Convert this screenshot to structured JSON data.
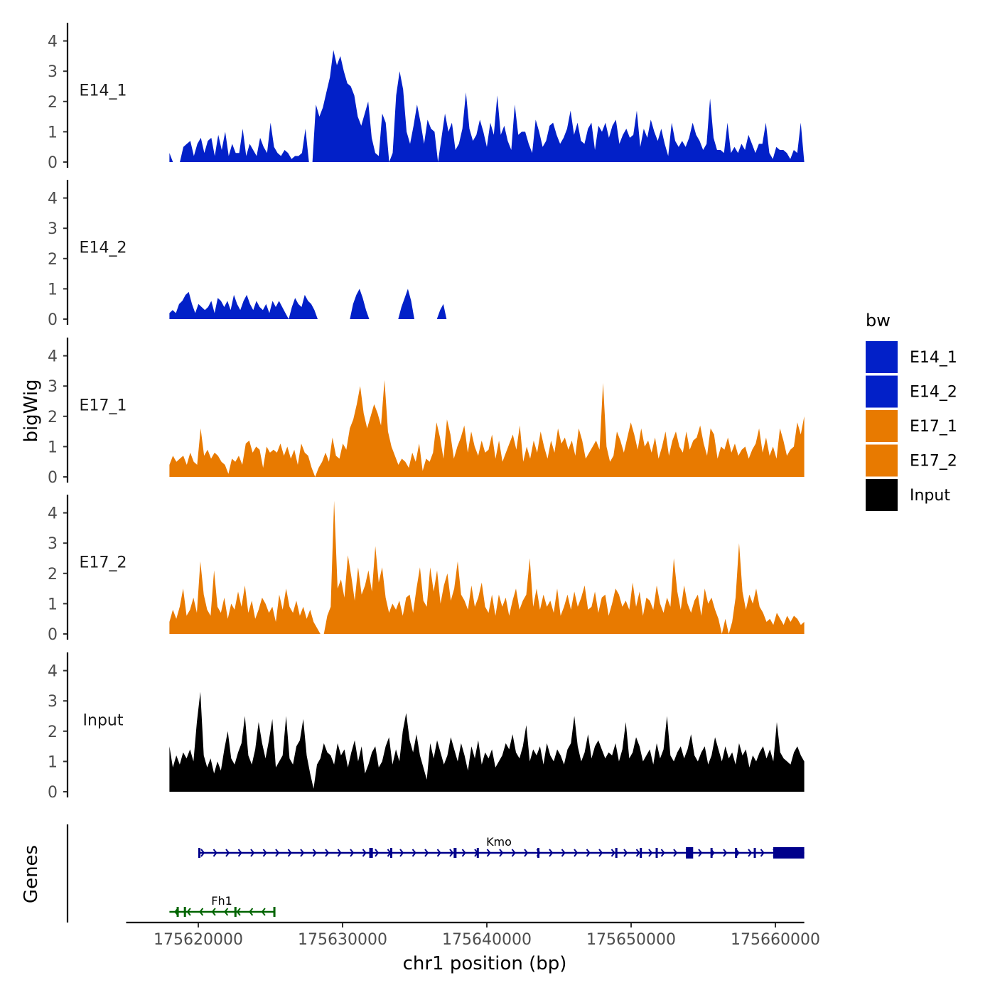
{
  "chart_data": {
    "type": "area",
    "title": "",
    "ylabel": "bigWig",
    "genes_label": "Genes",
    "xlabel": "chr1 position (bp)",
    "xlim": [
      175615000,
      175662000
    ],
    "data_xrange": [
      175618000,
      175662000
    ],
    "x_ticks": [
      175620000,
      175630000,
      175640000,
      175650000,
      175660000
    ],
    "x_tick_labels": [
      "175620000",
      "175630000",
      "175640000",
      "175650000",
      "175660000"
    ],
    "y_ticks": [
      0,
      1,
      2,
      3,
      4
    ],
    "y_tick_labels": [
      "0",
      "1",
      "2",
      "3",
      "4"
    ],
    "ylim": [
      0,
      4.5
    ],
    "series": [
      {
        "name": "E14_1",
        "color": "#0220c8",
        "values": [
          0.3,
          0.0,
          0.0,
          0.0,
          0.5,
          0.6,
          0.7,
          0.2,
          0.6,
          0.8,
          0.3,
          0.7,
          0.8,
          0.2,
          0.9,
          0.4,
          1.0,
          0.2,
          0.6,
          0.3,
          0.3,
          1.1,
          0.2,
          0.6,
          0.4,
          0.2,
          0.8,
          0.5,
          0.3,
          1.3,
          0.5,
          0.3,
          0.2,
          0.4,
          0.3,
          0.1,
          0.2,
          0.2,
          0.3,
          1.1,
          0.0,
          0.0,
          1.9,
          1.5,
          1.8,
          2.3,
          2.8,
          3.7,
          3.2,
          3.5,
          3.0,
          2.6,
          2.5,
          2.2,
          1.5,
          1.2,
          1.6,
          2.0,
          0.8,
          0.3,
          0.2,
          1.6,
          1.3,
          0.0,
          0.3,
          2.2,
          3.0,
          2.4,
          1.0,
          0.6,
          1.2,
          1.9,
          1.3,
          0.6,
          1.4,
          1.1,
          1.0,
          0.0,
          0.8,
          1.6,
          1.0,
          1.3,
          0.4,
          0.6,
          1.1,
          2.3,
          1.1,
          0.7,
          0.9,
          1.4,
          1.0,
          0.5,
          1.3,
          0.9,
          2.2,
          0.9,
          1.2,
          0.7,
          0.4,
          1.9,
          0.9,
          1.0,
          1.0,
          0.6,
          0.3,
          1.4,
          1.0,
          0.5,
          0.7,
          1.2,
          1.3,
          0.9,
          0.6,
          0.8,
          1.1,
          1.7,
          0.9,
          1.3,
          0.7,
          0.6,
          1.1,
          1.3,
          0.4,
          1.2,
          1.0,
          1.3,
          0.8,
          1.2,
          1.4,
          0.6,
          0.9,
          1.1,
          0.8,
          0.9,
          1.7,
          0.5,
          1.1,
          0.8,
          1.4,
          1.0,
          0.7,
          1.1,
          0.6,
          0.2,
          1.3,
          0.7,
          0.5,
          0.7,
          0.5,
          0.8,
          1.3,
          0.9,
          0.7,
          0.4,
          0.6,
          2.1,
          0.8,
          0.4,
          0.4,
          0.3,
          1.3,
          0.3,
          0.5,
          0.3,
          0.6,
          0.4,
          0.9,
          0.6,
          0.3,
          0.6,
          0.6,
          1.3,
          0.3,
          0.1,
          0.5,
          0.4,
          0.4,
          0.3,
          0.1,
          0.4,
          0.3,
          1.3,
          0.0
        ]
      },
      {
        "name": "E14_2",
        "color": "#0220c8",
        "values": [
          0.2,
          0.3,
          0.2,
          0.5,
          0.6,
          0.8,
          0.9,
          0.5,
          0.2,
          0.5,
          0.4,
          0.3,
          0.4,
          0.6,
          0.2,
          0.7,
          0.6,
          0.4,
          0.6,
          0.3,
          0.8,
          0.5,
          0.3,
          0.6,
          0.8,
          0.5,
          0.3,
          0.6,
          0.4,
          0.3,
          0.5,
          0.2,
          0.6,
          0.4,
          0.6,
          0.4,
          0.2,
          0.0,
          0.4,
          0.7,
          0.5,
          0.4,
          0.8,
          0.6,
          0.5,
          0.3,
          0.0,
          0.0,
          0.0,
          0.0,
          0.0,
          0.0,
          0.0,
          0.0,
          0.0,
          0.0,
          0.0,
          0.5,
          0.8,
          1.0,
          0.7,
          0.3,
          0.0,
          0.0,
          0.0,
          0.0,
          0.0,
          0.0,
          0.0,
          0.0,
          0.0,
          0.0,
          0.4,
          0.7,
          1.0,
          0.6,
          0.0,
          0.0,
          0.0,
          0.0,
          0.0,
          0.0,
          0.0,
          0.0,
          0.3,
          0.5,
          0.0,
          0.0,
          0.0,
          0.0,
          0.0,
          0.0,
          0.0,
          0.0,
          0.0,
          0.0,
          0.0,
          0.0,
          0.0,
          0.0,
          0.0,
          0.0,
          0.0,
          0.0,
          0.0,
          0.0,
          0.0,
          0.0,
          0.0,
          0.0,
          0.0,
          0.0,
          0.0,
          0.0,
          0.0,
          0.0,
          0.0,
          0.0,
          0.0,
          0.0,
          0.0,
          0.0,
          0.0,
          0.0,
          0.0,
          0.0,
          0.0,
          0.0,
          0.0,
          0.0,
          0.0,
          0.0,
          0.0,
          0.0,
          0.0,
          0.0,
          0.0,
          0.0,
          0.0,
          0.0,
          0.0,
          0.0,
          0.0,
          0.0,
          0.0,
          0.0,
          0.0,
          0.0,
          0.0,
          0.0,
          0.0,
          0.0,
          0.0,
          0.0,
          0.0,
          0.0,
          0.0,
          0.0,
          0.0,
          0.0,
          0.0,
          0.0,
          0.0,
          0.0,
          0.0,
          0.0,
          0.0,
          0.0,
          0.0,
          0.0,
          0.0,
          0.0,
          0.0,
          0.0,
          0.0,
          0.0,
          0.0,
          0.0,
          0.0,
          0.0,
          0.0,
          0.0,
          0.0,
          0.0,
          0.0,
          0.0,
          0.0,
          0.0,
          0.0,
          0.0,
          0.0,
          0.0,
          0.0,
          0.0,
          0.0,
          0.0,
          0.0,
          0.0
        ]
      },
      {
        "name": "E17_1",
        "color": "#e87a00",
        "values": [
          0.4,
          0.7,
          0.5,
          0.6,
          0.7,
          0.4,
          0.8,
          0.5,
          0.4,
          1.6,
          0.7,
          0.9,
          0.6,
          0.8,
          0.7,
          0.5,
          0.4,
          0.1,
          0.6,
          0.5,
          0.7,
          0.4,
          1.1,
          1.2,
          0.8,
          1.0,
          0.9,
          0.3,
          1.0,
          0.8,
          0.9,
          0.8,
          1.1,
          0.7,
          1.0,
          0.6,
          0.9,
          0.4,
          1.1,
          0.8,
          0.7,
          0.3,
          0.0,
          0.3,
          0.5,
          0.8,
          0.5,
          1.3,
          0.7,
          0.6,
          1.1,
          0.9,
          1.6,
          1.9,
          2.4,
          3.0,
          2.1,
          1.6,
          2.0,
          2.4,
          2.1,
          1.7,
          3.2,
          1.5,
          1.0,
          0.7,
          0.4,
          0.6,
          0.5,
          0.3,
          0.8,
          0.5,
          1.1,
          0.2,
          0.6,
          0.5,
          0.8,
          1.8,
          1.3,
          0.6,
          1.9,
          1.4,
          0.6,
          1.0,
          1.3,
          1.7,
          0.8,
          1.5,
          1.0,
          0.7,
          1.2,
          0.8,
          0.9,
          1.4,
          0.6,
          1.2,
          0.5,
          0.8,
          1.1,
          1.4,
          0.9,
          1.7,
          0.5,
          1.0,
          0.6,
          1.2,
          0.8,
          1.5,
          1.0,
          0.6,
          1.2,
          0.8,
          1.6,
          1.1,
          1.3,
          0.9,
          1.2,
          0.7,
          1.6,
          1.2,
          0.6,
          0.8,
          1.0,
          1.2,
          0.9,
          3.1,
          1.0,
          0.5,
          0.7,
          1.5,
          1.2,
          0.8,
          1.3,
          1.8,
          1.4,
          0.9,
          1.6,
          1.0,
          1.2,
          0.8,
          1.3,
          0.6,
          1.0,
          1.5,
          0.7,
          1.2,
          1.5,
          1.0,
          0.8,
          1.5,
          0.9,
          1.2,
          1.3,
          1.7,
          1.1,
          0.7,
          1.6,
          1.4,
          0.6,
          1.0,
          0.9,
          1.3,
          0.8,
          1.1,
          0.7,
          0.9,
          1.0,
          0.6,
          0.9,
          1.1,
          1.6,
          0.8,
          1.3,
          0.7,
          1.0,
          0.6,
          1.6,
          1.2,
          0.7,
          0.9,
          1.0,
          1.8,
          1.4,
          2.0
        ]
      },
      {
        "name": "E17_2",
        "color": "#e87a00",
        "values": [
          0.4,
          0.8,
          0.5,
          0.9,
          1.5,
          0.6,
          0.8,
          1.2,
          0.7,
          2.4,
          1.3,
          0.8,
          0.6,
          2.1,
          0.9,
          0.7,
          1.2,
          0.5,
          1.0,
          0.8,
          1.4,
          0.9,
          1.6,
          0.7,
          1.1,
          0.5,
          0.8,
          1.2,
          1.0,
          0.7,
          0.9,
          0.4,
          1.3,
          0.8,
          1.5,
          0.9,
          0.7,
          1.1,
          0.6,
          0.9,
          0.5,
          0.8,
          0.4,
          0.2,
          0.0,
          0.0,
          0.6,
          0.9,
          4.4,
          1.5,
          1.8,
          1.2,
          2.6,
          1.9,
          1.1,
          2.2,
          1.3,
          1.6,
          2.1,
          1.4,
          2.9,
          1.7,
          2.2,
          1.2,
          0.7,
          1.0,
          0.8,
          1.1,
          0.6,
          1.2,
          1.3,
          0.7,
          1.5,
          2.2,
          1.1,
          0.9,
          2.2,
          1.4,
          2.1,
          1.0,
          1.6,
          2.0,
          1.1,
          1.5,
          2.4,
          1.3,
          1.1,
          0.8,
          1.6,
          0.9,
          1.2,
          1.7,
          0.9,
          0.7,
          1.3,
          0.6,
          1.3,
          0.9,
          1.2,
          0.6,
          1.1,
          1.5,
          0.8,
          1.1,
          1.3,
          2.5,
          0.9,
          1.5,
          0.8,
          1.3,
          0.9,
          1.1,
          0.7,
          1.5,
          0.6,
          0.9,
          1.3,
          0.8,
          1.4,
          0.9,
          1.2,
          1.6,
          0.8,
          0.9,
          1.4,
          0.7,
          1.2,
          1.3,
          0.6,
          1.0,
          1.5,
          1.3,
          0.9,
          1.1,
          0.8,
          1.7,
          0.9,
          1.4,
          0.6,
          1.2,
          1.1,
          0.8,
          1.6,
          1.0,
          0.7,
          1.2,
          0.9,
          2.5,
          1.4,
          0.8,
          1.6,
          1.0,
          0.7,
          1.1,
          1.3,
          0.6,
          1.5,
          1.0,
          1.2,
          0.8,
          0.5,
          0.0,
          0.5,
          0.0,
          0.4,
          1.2,
          3.0,
          1.4,
          0.8,
          1.3,
          1.0,
          1.5,
          0.9,
          0.7,
          0.4,
          0.5,
          0.3,
          0.7,
          0.5,
          0.3,
          0.6,
          0.4,
          0.6,
          0.5,
          0.3,
          0.4
        ]
      },
      {
        "name": "Input",
        "color": "#000000",
        "values": [
          1.5,
          0.8,
          1.2,
          0.9,
          1.3,
          1.1,
          1.4,
          1.0,
          2.3,
          3.3,
          1.2,
          0.8,
          1.1,
          0.6,
          1.0,
          0.7,
          1.4,
          2.0,
          1.1,
          0.9,
          1.3,
          1.6,
          2.5,
          1.2,
          0.9,
          1.4,
          2.3,
          1.6,
          1.1,
          1.7,
          2.4,
          0.8,
          1.0,
          1.2,
          2.5,
          1.1,
          0.9,
          1.5,
          1.7,
          2.4,
          1.2,
          0.6,
          0.1,
          0.9,
          1.1,
          1.6,
          1.3,
          1.2,
          0.9,
          1.6,
          1.2,
          1.4,
          0.8,
          1.3,
          1.7,
          1.0,
          1.5,
          0.6,
          0.9,
          1.3,
          1.5,
          0.8,
          1.0,
          1.5,
          1.8,
          0.9,
          1.4,
          1.0,
          2.0,
          2.6,
          1.7,
          1.3,
          1.9,
          1.2,
          0.8,
          0.4,
          1.6,
          1.1,
          1.7,
          1.3,
          0.9,
          1.2,
          1.8,
          1.4,
          1.0,
          1.6,
          1.2,
          0.7,
          1.5,
          1.1,
          1.7,
          0.9,
          1.3,
          1.1,
          1.4,
          0.8,
          1.0,
          1.2,
          1.6,
          1.4,
          1.9,
          1.3,
          1.1,
          1.5,
          2.2,
          1.0,
          1.4,
          1.2,
          1.5,
          0.9,
          1.6,
          1.2,
          1.0,
          1.4,
          1.2,
          0.9,
          1.4,
          1.6,
          2.5,
          1.5,
          1.0,
          1.3,
          1.9,
          1.1,
          1.5,
          1.7,
          1.4,
          1.1,
          1.3,
          1.2,
          1.6,
          1.0,
          1.4,
          2.3,
          1.1,
          1.3,
          1.8,
          1.5,
          1.0,
          1.2,
          1.4,
          0.9,
          1.6,
          1.1,
          1.4,
          2.5,
          1.2,
          1.0,
          1.3,
          1.5,
          1.1,
          1.4,
          1.9,
          1.2,
          1.0,
          1.3,
          1.5,
          0.9,
          1.2,
          1.8,
          1.4,
          1.0,
          1.5,
          1.1,
          1.3,
          0.9,
          1.6,
          1.2,
          1.4,
          0.8,
          1.2,
          1.0,
          1.3,
          1.5,
          1.1,
          1.4,
          1.0,
          2.3,
          1.3,
          1.1,
          1.0,
          0.9,
          1.3,
          1.5,
          1.2,
          1.0
        ]
      }
    ],
    "legend": {
      "title": "bw",
      "position": "right",
      "entries": [
        {
          "label": "E14_1",
          "color": "#0220c8"
        },
        {
          "label": "E14_2",
          "color": "#0220c8"
        },
        {
          "label": "E17_1",
          "color": "#e87a00"
        },
        {
          "label": "E17_2",
          "color": "#e87a00"
        },
        {
          "label": "Input",
          "color": "#000000"
        }
      ]
    },
    "genes": [
      {
        "name": "Kmo",
        "strand": "+",
        "color": "#00008b",
        "start": 175620000,
        "end": 175662000,
        "exons": [
          [
            175620000,
            175620100
          ],
          [
            175631850,
            175632100
          ],
          [
            175633300,
            175633400
          ],
          [
            175637700,
            175637900
          ],
          [
            175639300,
            175639400
          ],
          [
            175643500,
            175643600
          ],
          [
            175648900,
            175649050
          ],
          [
            175650600,
            175650700
          ],
          [
            175651700,
            175651800
          ],
          [
            175653800,
            175654300
          ],
          [
            175655500,
            175655600
          ],
          [
            175657200,
            175657300
          ],
          [
            175658500,
            175658600
          ],
          [
            175659850,
            175662000
          ]
        ]
      },
      {
        "name": "Fh1",
        "strand": "-",
        "color": "#006400",
        "start": 175618000,
        "end": 175625300,
        "exons": [
          [
            175618500,
            175618600
          ],
          [
            175619000,
            175619100
          ],
          [
            175622500,
            175622600
          ],
          [
            175625200,
            175625300
          ]
        ]
      }
    ]
  }
}
